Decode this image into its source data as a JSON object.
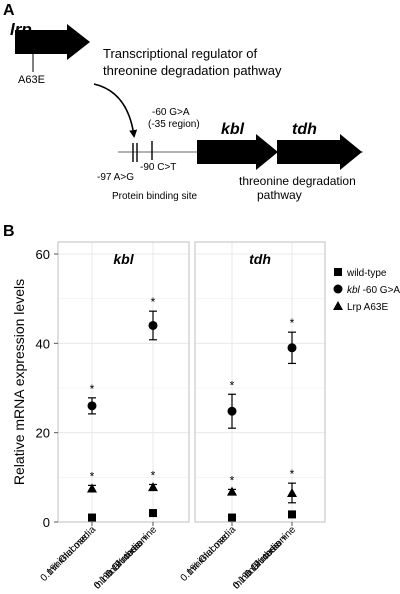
{
  "panel_a": {
    "letter": "A",
    "gene_lrp": "lrp",
    "lrp_mutation": "A63E",
    "description_line1": "Transcriptional regulator of",
    "description_line2": "threonine degradation pathway",
    "mut_60_line1": "-60 G>A",
    "mut_60_line2": "(-35 region)",
    "mut_90": "-90 C>T",
    "mut_97": "-97 A>G",
    "binding_site": "Protein binding site",
    "gene_kbl": "kbl",
    "gene_tdh": "tdh",
    "pathway_line1": "threonine degradation",
    "pathway_line2": "pathway"
  },
  "panel_b": {
    "letter": "B"
  },
  "chart_data": {
    "type": "scatter",
    "ylabel": "Relative mRNA expression levels",
    "ylim": [
      0,
      60
    ],
    "yticks": [
      0,
      20,
      40,
      60
    ],
    "grid": true,
    "legend_position": "right",
    "facets": [
      "kbl",
      "tdh"
    ],
    "categories": [
      [
        "0.1% Glucose",
        "minimal media"
      ],
      [
        "0.1% Glucose",
        "minimal media +",
        "0.1% threonine"
      ]
    ],
    "series": [
      {
        "name": "wild-type",
        "marker": "square",
        "values": {
          "kbl": [
            1,
            2
          ],
          "tdh": [
            1,
            1.7
          ]
        },
        "errors": {
          "kbl": [
            0,
            0
          ],
          "tdh": [
            0,
            0
          ]
        },
        "significant": {
          "kbl": [
            false,
            false
          ],
          "tdh": [
            false,
            false
          ]
        }
      },
      {
        "name_italic": "kbl",
        "name": " -60 G>A",
        "marker": "circle",
        "values": {
          "kbl": [
            26,
            44
          ],
          "tdh": [
            24.8,
            39
          ]
        },
        "errors": {
          "kbl": [
            1.8,
            3.2
          ],
          "tdh": [
            3.8,
            3.5
          ]
        },
        "significant": {
          "kbl": [
            true,
            true
          ],
          "tdh": [
            true,
            true
          ]
        }
      },
      {
        "name": "Lrp A63E",
        "marker": "triangle",
        "values": {
          "kbl": [
            7.5,
            7.8
          ],
          "tdh": [
            6.8,
            6.5
          ]
        },
        "errors": {
          "kbl": [
            0.7,
            0.6
          ],
          "tdh": [
            0.5,
            2.2
          ]
        },
        "significant": {
          "kbl": [
            true,
            true
          ],
          "tdh": [
            true,
            true
          ]
        }
      }
    ]
  },
  "significance_mark": "*"
}
